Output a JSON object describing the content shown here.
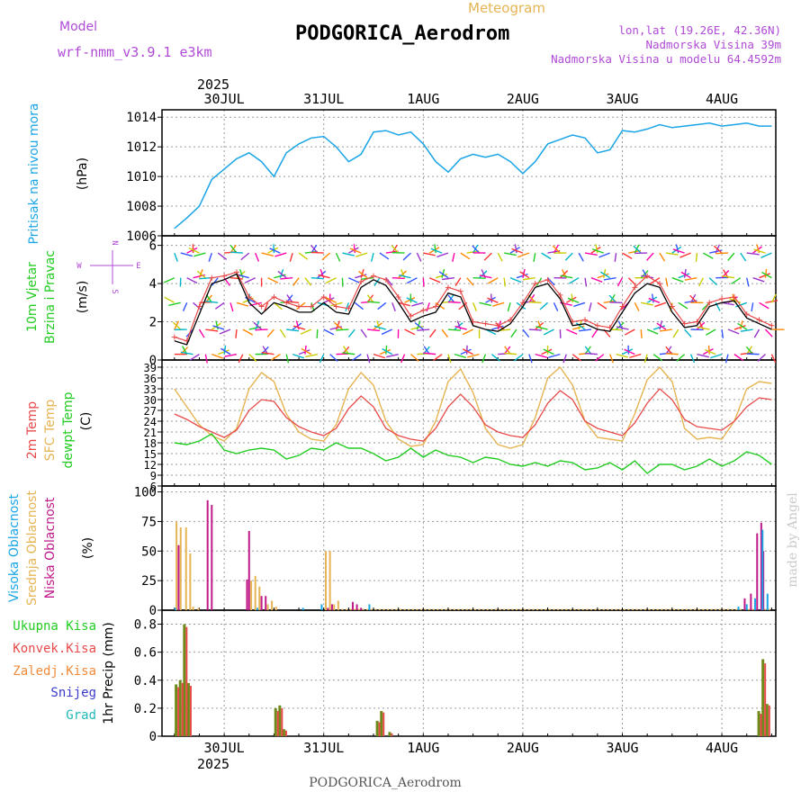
{
  "header": {
    "model_label": "Model",
    "model_name": "wrf-nmm_v3.9.1 e3km",
    "meteogram_label": "Meteogram",
    "station_title": "PODGORICA_Aerodrom",
    "lonlat": "lon,lat (19.26E, 42.36N)",
    "elevation": "Nadmorska Visina 39m",
    "model_elevation": "Nadmorska Visina u modelu 64.4592m",
    "footer_station": "PODGORICA_Aerodrom",
    "watermark": "made by Angel"
  },
  "colors": {
    "purple": "#b04ad6",
    "orange": "#e6b452",
    "sky": "#1aa5e6",
    "red": "#e84a4a",
    "dewp": "#22cc22",
    "black": "#000000",
    "magenta": "#c01a8a",
    "olive": "#6e8b1a",
    "blue": "#3a3acc",
    "teal": "#22b8b8"
  },
  "chart_data": [
    {
      "type": "line",
      "title": "Pritisak na nivou mora",
      "ylabel": "(hPa)",
      "ylim": [
        1006,
        1014.5
      ],
      "yticks": [
        1006,
        1008,
        1010,
        1012,
        1014
      ],
      "x_top_labels": [
        "30JUL",
        "31JUL",
        "1AUG",
        "2AUG",
        "3AUG",
        "4AUG"
      ],
      "year": "2025",
      "x_hours": [
        0,
        3,
        6,
        9,
        12,
        15,
        18,
        21,
        24,
        27,
        30,
        33,
        36,
        39,
        42,
        45,
        48,
        51,
        54,
        57,
        60,
        63,
        66,
        69,
        72,
        75,
        78,
        81,
        84,
        87,
        90,
        93,
        96,
        99,
        102,
        105,
        108,
        111,
        114,
        117,
        120,
        123,
        126,
        129,
        132,
        135,
        138,
        141,
        144
      ],
      "series": [
        {
          "name": "MSLP",
          "values": [
            1006.5,
            1007.2,
            1008.0,
            1009.8,
            1010.5,
            1011.2,
            1011.6,
            1011.0,
            1010.0,
            1011.6,
            1012.2,
            1012.6,
            1012.7,
            1012.0,
            1011.0,
            1011.5,
            1013.0,
            1013.1,
            1012.8,
            1013.0,
            1012.2,
            1011.0,
            1010.3,
            1011.2,
            1011.5,
            1011.3,
            1011.5,
            1011.0,
            1010.2,
            1011.0,
            1012.2,
            1012.5,
            1012.8,
            1012.6,
            1011.6,
            1011.8,
            1013.1,
            1013.0,
            1013.2,
            1013.5,
            1013.3,
            1013.4,
            1013.5,
            1013.6,
            1013.4,
            1013.5,
            1013.6,
            1013.4,
            1013.4
          ]
        }
      ]
    },
    {
      "type": "line",
      "title": "10m Vjetar Brzina i Pravac",
      "ylabel": "(m/s)",
      "ylim": [
        0,
        6.5
      ],
      "yticks": [
        0,
        2,
        4,
        6
      ],
      "compass_labels": [
        "N",
        "W",
        "E",
        "S"
      ],
      "x_hours": [
        0,
        3,
        6,
        9,
        12,
        15,
        18,
        21,
        24,
        27,
        30,
        33,
        36,
        39,
        42,
        45,
        48,
        51,
        54,
        57,
        60,
        63,
        66,
        69,
        72,
        75,
        78,
        81,
        84,
        87,
        90,
        93,
        96,
        99,
        102,
        105,
        108,
        111,
        114,
        117,
        120,
        123,
        126,
        129,
        132,
        135,
        138,
        141,
        144
      ],
      "series": [
        {
          "name": "Brzina",
          "values": [
            1.0,
            0.8,
            2.4,
            4.0,
            4.2,
            4.5,
            3.0,
            2.4,
            3.0,
            2.8,
            2.5,
            2.5,
            3.0,
            2.5,
            2.4,
            3.8,
            4.2,
            3.9,
            3.0,
            2.0,
            2.3,
            2.5,
            3.5,
            3.3,
            1.8,
            1.6,
            1.5,
            1.9,
            2.8,
            3.8,
            4.0,
            3.2,
            1.8,
            1.9,
            1.6,
            1.5,
            2.5,
            3.5,
            4.0,
            3.8,
            2.5,
            1.7,
            1.8,
            2.8,
            3.0,
            3.1,
            2.2,
            1.9,
            1.6
          ]
        },
        {
          "name": "Udari",
          "values": [
            1.2,
            1.0,
            2.8,
            4.3,
            4.4,
            4.6,
            3.3,
            2.8,
            3.3,
            3.0,
            2.8,
            2.8,
            3.3,
            2.8,
            2.7,
            4.1,
            4.4,
            4.2,
            3.3,
            2.3,
            2.6,
            2.8,
            3.8,
            3.6,
            2.0,
            1.9,
            1.8,
            2.1,
            3.0,
            4.0,
            4.2,
            3.4,
            2.0,
            2.1,
            1.8,
            1.7,
            2.8,
            3.8,
            4.4,
            4.0,
            2.8,
            1.9,
            2.0,
            3.0,
            3.2,
            3.3,
            2.4,
            2.1,
            1.8
          ]
        }
      ]
    },
    {
      "type": "line",
      "title": "2m Temp / SFC Temp / dewpt Temp",
      "ylabel": "(C)",
      "ylim": [
        6,
        41
      ],
      "yticks": [
        6,
        9,
        12,
        15,
        18,
        21,
        24,
        27,
        30,
        33,
        36,
        39
      ],
      "x_hours": [
        0,
        3,
        6,
        9,
        12,
        15,
        18,
        21,
        24,
        27,
        30,
        33,
        36,
        39,
        42,
        45,
        48,
        51,
        54,
        57,
        60,
        63,
        66,
        69,
        72,
        75,
        78,
        81,
        84,
        87,
        90,
        93,
        96,
        99,
        102,
        105,
        108,
        111,
        114,
        117,
        120,
        123,
        126,
        129,
        132,
        135,
        138,
        141,
        144
      ],
      "series": [
        {
          "name": "2m Temp",
          "values": [
            26.0,
            24.5,
            22.5,
            21.0,
            19.5,
            21.5,
            27.0,
            30.0,
            29.5,
            25.0,
            22.5,
            21.0,
            20.0,
            22.0,
            27.5,
            31.0,
            28.0,
            22.0,
            20.0,
            19.0,
            18.5,
            22.0,
            28.0,
            31.5,
            28.0,
            23.0,
            21.0,
            20.0,
            19.5,
            23.0,
            29.0,
            32.5,
            30.0,
            24.0,
            22.0,
            21.0,
            20.0,
            23.5,
            29.0,
            33.0,
            30.0,
            24.5,
            22.5,
            22.0,
            21.5,
            24.0,
            28.0,
            30.5,
            30.0
          ]
        },
        {
          "name": "SFC Temp",
          "values": [
            33.0,
            28.0,
            23.0,
            20.0,
            18.5,
            22.0,
            33.0,
            37.5,
            35.0,
            26.0,
            21.0,
            19.0,
            18.5,
            23.0,
            33.0,
            37.5,
            34.0,
            24.0,
            19.0,
            17.0,
            17.5,
            24.0,
            35.0,
            38.5,
            32.0,
            22.0,
            17.5,
            16.5,
            17.5,
            25.0,
            36.0,
            39.0,
            34.0,
            24.0,
            19.5,
            19.0,
            18.5,
            26.0,
            35.5,
            39.0,
            35.0,
            22.0,
            19.0,
            19.5,
            19.0,
            24.0,
            33.0,
            35.0,
            34.5
          ]
        },
        {
          "name": "dewpt Temp",
          "values": [
            18.0,
            17.5,
            18.5,
            20.5,
            16.0,
            15.0,
            16.0,
            16.5,
            16.0,
            13.5,
            14.5,
            16.5,
            16.0,
            18.0,
            16.5,
            16.5,
            15.0,
            13.0,
            14.0,
            16.5,
            14.0,
            16.0,
            14.5,
            14.0,
            12.5,
            14.0,
            13.5,
            12.0,
            11.5,
            12.5,
            11.5,
            13.0,
            12.5,
            10.5,
            11.0,
            12.5,
            10.5,
            13.0,
            9.5,
            12.0,
            12.0,
            10.5,
            11.5,
            13.5,
            11.5,
            13.0,
            15.5,
            14.5,
            12.0
          ]
        }
      ]
    },
    {
      "type": "bar",
      "title": "Visoka / Srednja / Niska Oblacnost",
      "ylabel": "(%)",
      "ylim": [
        0,
        105
      ],
      "yticks": [
        0,
        25,
        50,
        75,
        100
      ],
      "legend": [
        "Visoka Oblacnost",
        "Srednja Oblacnost",
        "Niska Oblacnost"
      ],
      "series": [
        {
          "name": "Srednja",
          "x": [
            0.5,
            1.5,
            2.8,
            3.8,
            4.5,
            5.8,
            18.5,
            19.5,
            20.5,
            22.5,
            23.5,
            24.5,
            36.5,
            37.5,
            38.5,
            39.5,
            40.5,
            41.5,
            42.5,
            43.5,
            44.5,
            45.5,
            46.5,
            47.5,
            48.5,
            49.5,
            50.5,
            51.5,
            52.5,
            53.5,
            54.5,
            55.5,
            56.5,
            57.5,
            58.5,
            59.5,
            60.5,
            61.5,
            62.5,
            63.5,
            64.5,
            65.5,
            66.5,
            67.5,
            68.5,
            69.5,
            70.5,
            71.5,
            72.5,
            73.5,
            74.5,
            75.5,
            76.5,
            77.5,
            78.5,
            79.5,
            80.5,
            81.5,
            82.5,
            83.5,
            84.5,
            85.5,
            86.5,
            87.5,
            88.5,
            89.5,
            90.5,
            91.5,
            92.5,
            93.5,
            94.5,
            95.5,
            96.5,
            97.5,
            98.5,
            99.5,
            100.5,
            101.5,
            102.5,
            103.5,
            104.5,
            105.5,
            106.5,
            107.5,
            108.5,
            109.5,
            110.5,
            111.5,
            112.5,
            113.5,
            114.5,
            115.5,
            116.5,
            117.5,
            118.5,
            119.5,
            120.5,
            121.5,
            122.5,
            123.5,
            124.5,
            125.5,
            126.5,
            127.5,
            128.5,
            129.5,
            130.5,
            131.5,
            132.5,
            133.5,
            134.5,
            135.5,
            136.5,
            137.5,
            138.5,
            139.5,
            140.5,
            141.5,
            142.5,
            143.5
          ],
          "values": [
            75,
            70,
            70,
            48,
            3,
            2,
            25,
            29,
            20,
            5,
            8,
            3,
            50,
            50,
            5,
            8,
            1,
            1,
            1,
            1,
            1,
            1,
            1,
            1,
            1,
            1,
            1,
            1,
            1,
            1,
            1,
            1,
            1,
            1,
            1,
            1,
            1,
            1,
            1,
            1,
            1,
            1,
            1,
            1,
            1,
            1,
            1,
            1,
            1,
            1,
            1,
            1,
            1,
            1,
            1,
            1,
            1,
            1,
            1,
            1,
            1,
            1,
            1,
            1,
            1,
            1,
            1,
            1,
            1,
            1,
            1,
            1,
            1,
            1,
            1,
            1,
            1,
            1,
            1,
            1,
            1,
            1,
            1,
            1,
            1,
            1,
            1,
            1,
            1,
            1,
            1,
            1,
            1,
            1,
            1,
            1,
            1,
            1,
            1,
            1,
            1,
            1,
            1,
            1,
            1,
            1,
            1,
            1,
            1,
            1,
            1,
            1,
            1,
            1,
            1,
            1,
            1,
            1,
            1,
            1
          ]
        },
        {
          "name": "Niska",
          "x": [
            1.0,
            8.0,
            9.0,
            17.5,
            18.0,
            21.0,
            22.0,
            37.0,
            38.0,
            43.0,
            44.0,
            45.0,
            137.5,
            139.0,
            140.5,
            141.5,
            142.0
          ],
          "values": [
            55,
            93,
            89,
            26,
            67,
            12,
            12,
            2,
            5,
            7,
            5,
            2,
            10,
            14,
            65,
            74,
            50
          ]
        },
        {
          "name": "Visoka",
          "x": [
            0.2,
            20.0,
            31.0,
            35.5,
            47.0,
            136.0,
            138.0,
            140.0,
            141.8,
            143.0
          ],
          "values": [
            2,
            2,
            2,
            5,
            5,
            3,
            5,
            10,
            68,
            14
          ]
        }
      ]
    },
    {
      "type": "bar",
      "title": "Precipitation",
      "ylabel": "1hr Precip (mm)",
      "ylim": [
        0,
        0.9
      ],
      "yticks": [
        0,
        0.2,
        0.4,
        0.6,
        0.8
      ],
      "x_bottom_labels": [
        "30JUL",
        "31JUL",
        "1AUG",
        "2AUG",
        "3AUG",
        "4AUG"
      ],
      "year": "2025",
      "legend": [
        "Ukupna Kisa",
        "Konvek.Kisa",
        "Zaledj.Kisa",
        "Snijeg",
        "Grad"
      ],
      "series": [
        {
          "name": "Ukupna Kisa",
          "x": [
            0.5,
            1.5,
            2.5,
            3.5,
            24.5,
            25.5,
            26.5,
            49.0,
            50.0,
            52.0,
            141.0,
            142.0,
            143.0
          ],
          "values": [
            0.37,
            0.4,
            0.8,
            0.38,
            0.2,
            0.22,
            0.05,
            0.11,
            0.18,
            0.03,
            0.18,
            0.55,
            0.23
          ]
        },
        {
          "name": "Konvek.Kisa",
          "x": [
            0.5,
            1.5,
            2.5,
            3.5,
            24.5,
            25.5,
            26.5,
            49.0,
            50.0,
            52.0,
            141.0,
            142.0,
            143.0
          ],
          "values": [
            0.35,
            0.38,
            0.78,
            0.36,
            0.18,
            0.2,
            0.04,
            0.1,
            0.17,
            0.02,
            0.16,
            0.52,
            0.22
          ]
        }
      ]
    }
  ]
}
